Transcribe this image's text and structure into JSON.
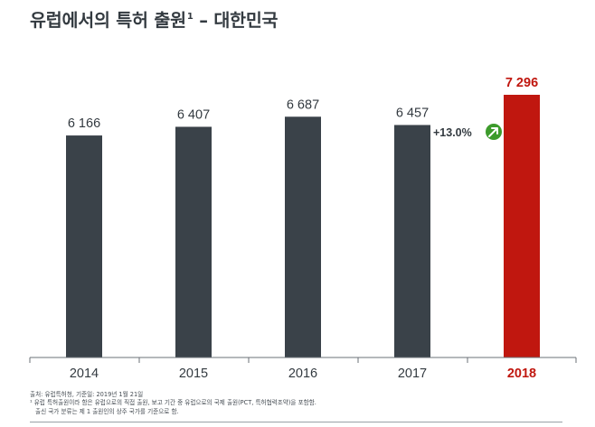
{
  "title": "유럽에서의 특허 출원",
  "title_sup": "1",
  "title_suffix": " – 대한민국",
  "colors": {
    "bar": "#3a4249",
    "highlight": "#c0170f",
    "growth": "#3d9b2c",
    "text": "#333a40"
  },
  "chart_data": {
    "type": "bar",
    "categories": [
      "2014",
      "2015",
      "2016",
      "2017",
      "2018"
    ],
    "values": [
      6166,
      6407,
      6687,
      6457,
      7296
    ],
    "value_labels": [
      "6 166",
      "6 407",
      "6 687",
      "6 457",
      "7 296"
    ],
    "highlight_index": 4,
    "annotation": {
      "text": "+13.0%",
      "icon": "up-right-arrow-icon",
      "between": [
        3,
        4
      ]
    },
    "ylim": [
      0,
      7296
    ],
    "title": "",
    "xlabel": "",
    "ylabel": ""
  },
  "footnotes": {
    "source": "출처: 유럽특허청, 기준일: 2019년 1월 21일",
    "note1": "¹ 유럽 특허출원이라 함은 유럽으로의 직접 출원, 보고 기간 중 유럽으로의 국제 출원(PCT, 특허협력조약)을 포함함.",
    "note2": "출신 국가 분류는 제 1 출원인의 상주 국가를 기준으로 함."
  }
}
